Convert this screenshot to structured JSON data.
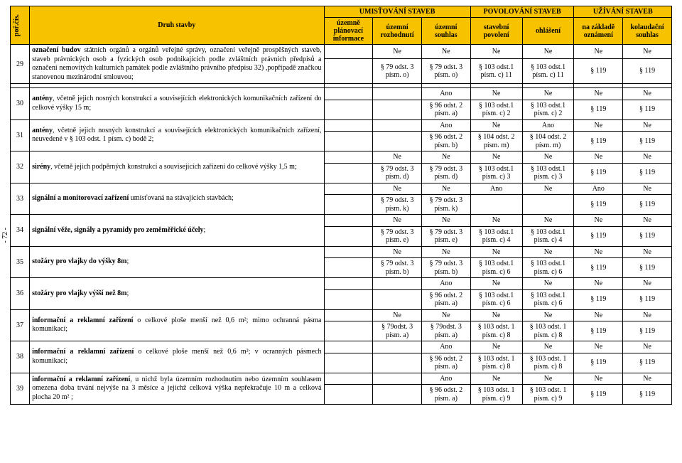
{
  "colors": {
    "header_bg": "#f7c200",
    "border": "#000000",
    "bg": "#ffffff"
  },
  "fonts": {
    "family": "Times New Roman",
    "body_pt": 10,
    "header_pt": 10
  },
  "side_note": "- 72 -",
  "header": {
    "col_num": "poř.čís.",
    "col_desc": "Druh stavby",
    "group1": "UMISŤOVÁNÍ STAVEB",
    "group2": "POVOLOVÁNÍ STAVEB",
    "group3": "UŽÍVÁNÍ STAVEB",
    "sub": {
      "c1": "územně plánovací informace",
      "c2": "územní rozhodnutí",
      "c3": "územní souhlas",
      "c4": "stavební povolení",
      "c5": "ohlášení",
      "c6": "na základě oznámení",
      "c7": "kolaudační souhlas"
    }
  },
  "rows": [
    {
      "n": "29",
      "desc": "označení budov státních orgánů a orgánů veřejné správy, označení veřejně prospěšných staveb, staveb právnických osob a fyzických osob podnikajících podle zvláštních právních předpisů a označení nemovitých kulturních památek podle zvláštního právního předpisu 32) ,popřípadě značkou stanovenou mezinárodní smlouvou;",
      "c1": {
        "t": "",
        "b": ""
      },
      "c2": {
        "t": "Ne",
        "b": "§ 79 odst. 3 písm. o)"
      },
      "c3": {
        "t": "Ne",
        "b": "§ 79 odst. 3 písm. o)"
      },
      "c4": {
        "t": "Ne",
        "b": "§ 103 odst.1 písm. c) 11"
      },
      "c5": {
        "t": "Ne",
        "b": "§ 103 odst.1 písm. c) 11"
      },
      "c6": {
        "t": "Ne",
        "b": "§ 119"
      },
      "c7": {
        "t": "Ne",
        "b": "§ 119"
      }
    },
    {
      "n": "30",
      "desc": "antény, včetně jejich nosných konstrukcí a souvisejících elektronických komunikačních zařízení do celkové výšky 15 m;",
      "c1": {
        "t": "",
        "b": ""
      },
      "c2": {
        "t": "",
        "b": ""
      },
      "c3": {
        "t": "Ano",
        "b": "§ 96 odst. 2 písm. a)"
      },
      "c4": {
        "t": "Ne",
        "b": "§ 103 odst.1 písm. c) 2"
      },
      "c5": {
        "t": "Ne",
        "b": "§ 103 odst.1 písm. c) 2"
      },
      "c6": {
        "t": "Ne",
        "b": "§ 119"
      },
      "c7": {
        "t": "Ne",
        "b": "§ 119"
      }
    },
    {
      "n": "31",
      "desc": "antény, včetně jejich nosných konstrukcí a souvisejících elektronických komunikačních zařízení, neuvedené v § 103 odst. 1 písm. c) bodě 2;",
      "c1": {
        "t": "",
        "b": ""
      },
      "c2": {
        "t": "",
        "b": ""
      },
      "c3": {
        "t": "Ano",
        "b": "§ 96 odst. 2 písm. b)"
      },
      "c4": {
        "t": "Ne",
        "b": "§ 104 odst. 2 písm. m)"
      },
      "c5": {
        "t": "Ano",
        "b": "§ 104 odst. 2 písm. m)"
      },
      "c6": {
        "t": "Ne",
        "b": "§ 119"
      },
      "c7": {
        "t": "Ne",
        "b": "§ 119"
      }
    },
    {
      "n": "32",
      "desc": "sirény, včetně jejich podpěrných konstrukcí a souvisejících zařízení do celkové výšky 1,5 m;",
      "c1": {
        "t": "",
        "b": ""
      },
      "c2": {
        "t": "Ne",
        "b": "§ 79 odst. 3 písm. d)"
      },
      "c3": {
        "t": "Ne",
        "b": "§ 79 odst. 3 písm. d)"
      },
      "c4": {
        "t": "Ne",
        "b": "§ 103 odst.1 písm. c) 3"
      },
      "c5": {
        "t": "Ne",
        "b": "§ 103 odst.1 písm. c) 3"
      },
      "c6": {
        "t": "Ne",
        "b": "§ 119"
      },
      "c7": {
        "t": "Ne",
        "b": "§ 119"
      }
    },
    {
      "n": "33",
      "desc": "signální a monitorovací zařízení umísťovaná na stávajících stavbách;",
      "c1": {
        "t": "",
        "b": ""
      },
      "c2": {
        "t": "Ne",
        "b": "§ 79 odst. 3 písm. k)"
      },
      "c3": {
        "t": "Ne",
        "b": "§ 79 odst. 3 písm. k)"
      },
      "c4": {
        "t": "Ano",
        "b": ""
      },
      "c5": {
        "t": "Ne",
        "b": ""
      },
      "c6": {
        "t": "Ano",
        "b": "§ 119"
      },
      "c7": {
        "t": "Ne",
        "b": "§ 119"
      }
    },
    {
      "n": "34",
      "desc": "signální věže, signály a pyramidy pro zeměměřické účely;",
      "c1": {
        "t": "",
        "b": ""
      },
      "c2": {
        "t": "Ne",
        "b": "§ 79 odst. 3 písm. e)"
      },
      "c3": {
        "t": "Ne",
        "b": "§ 79 odst. 3 písm. e)"
      },
      "c4": {
        "t": "Ne",
        "b": "§ 103 odst.1 písm. c) 4"
      },
      "c5": {
        "t": "Ne",
        "b": "§ 103 odst.1 písm. c) 4"
      },
      "c6": {
        "t": "Ne",
        "b": "§ 119"
      },
      "c7": {
        "t": "Ne",
        "b": "§ 119"
      }
    },
    {
      "n": "35",
      "desc": "stožáry pro vlajky do výšky 8m;",
      "c1": {
        "t": "",
        "b": ""
      },
      "c2": {
        "t": "Ne",
        "b": "§ 79 odst. 3 písm. b)"
      },
      "c3": {
        "t": "Ne",
        "b": "§ 79 odst. 3 písm. b)"
      },
      "c4": {
        "t": "Ne",
        "b": "§ 103 odst.1 písm. c) 6"
      },
      "c5": {
        "t": "Ne",
        "b": "§ 103 odst.1 písm. c) 6"
      },
      "c6": {
        "t": "Ne",
        "b": "§ 119"
      },
      "c7": {
        "t": "Ne",
        "b": "§ 119"
      }
    },
    {
      "n": "36",
      "desc": "stožáry pro vlajky výšší než 8m;",
      "c1": {
        "t": "",
        "b": ""
      },
      "c2": {
        "t": "",
        "b": ""
      },
      "c3": {
        "t": "Ano",
        "b": "§ 96 odst. 2 písm. a)"
      },
      "c4": {
        "t": "Ne",
        "b": "§ 103 odst.1 písm. c) 6"
      },
      "c5": {
        "t": "Ne",
        "b": "§ 103 odst.1 písm. c) 6"
      },
      "c6": {
        "t": "Ne",
        "b": "§ 119"
      },
      "c7": {
        "t": "Ne",
        "b": "§ 119"
      }
    },
    {
      "n": "37",
      "desc": "informační a reklamní zařízení o celkové ploše menší než 0,6 m²; mimo ochranná pásma komunikací;",
      "c1": {
        "t": "",
        "b": ""
      },
      "c2": {
        "t": "Ne",
        "b": "§ 79odst. 3 písm. a)"
      },
      "c3": {
        "t": "Ne",
        "b": "§ 79odst. 3 písm. a)"
      },
      "c4": {
        "t": "Ne",
        "b": "§ 103 odst. 1 písm. c) 8"
      },
      "c5": {
        "t": "Ne",
        "b": "§ 103 odst. 1 písm. c) 8"
      },
      "c6": {
        "t": "Ne",
        "b": "§ 119"
      },
      "c7": {
        "t": "Ne",
        "b": "§ 119"
      }
    },
    {
      "n": "38",
      "desc": "informační a reklamní zařízení o celkové ploše menší než 0,6 m²; v ocranných pásmech komunikací;",
      "c1": {
        "t": "",
        "b": ""
      },
      "c2": {
        "t": "",
        "b": ""
      },
      "c3": {
        "t": "Ano",
        "b": "§ 96 odst. 2 písm. a)"
      },
      "c4": {
        "t": "Ne",
        "b": "§ 103 odst. 1 písm. c) 8"
      },
      "c5": {
        "t": "Ne",
        "b": "§ 103 odst. 1 písm. c) 8"
      },
      "c6": {
        "t": "Ne",
        "b": "§ 119"
      },
      "c7": {
        "t": "Ne",
        "b": "§ 119"
      }
    },
    {
      "n": "39",
      "desc": "informační a reklamní zařízení, u nichž byla územním rozhodnutím nebo územním souhlasem omezena doba trvání nejvýše na 3 měsíce a jejichž celková výška nepřekračuje 10 m a celková plocha 20 m² ;",
      "c1": {
        "t": "",
        "b": ""
      },
      "c2": {
        "t": "",
        "b": ""
      },
      "c3": {
        "t": "Ano",
        "b": "§ 96 odst. 2 písm. a)"
      },
      "c4": {
        "t": "Ne",
        "b": "§ 103 odst. 1 písm. c) 9"
      },
      "c5": {
        "t": "Ne",
        "b": "§ 103 odst. 1 písm. c) 9"
      },
      "c6": {
        "t": "Ne",
        "b": "§ 119"
      },
      "c7": {
        "t": "Ne",
        "b": "§ 119"
      }
    }
  ]
}
